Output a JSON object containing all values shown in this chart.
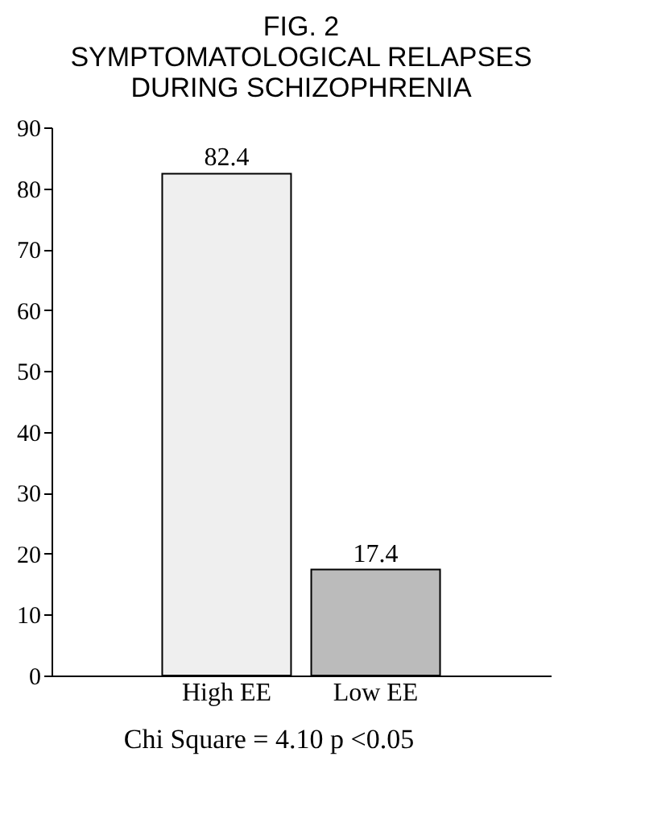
{
  "chart_data": {
    "type": "bar",
    "title": [
      "FIG. 2",
      "SYMPTOMATOLOGICAL RELAPSES",
      "DURING SCHIZOPHRENIA"
    ],
    "categories": [
      "High EE",
      "Low EE"
    ],
    "values": [
      82.4,
      17.4
    ],
    "colors": [
      "#efefef",
      "#bbbbbb"
    ],
    "ylim": [
      0,
      90
    ],
    "yticks": [
      0,
      10,
      20,
      30,
      40,
      50,
      60,
      70,
      80,
      90
    ],
    "grid": false,
    "data_labels": true,
    "annotations": [
      "Chi Square = 4.10 p <0.05"
    ]
  }
}
